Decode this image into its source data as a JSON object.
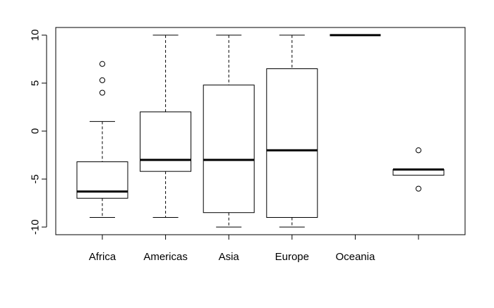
{
  "chart_data": {
    "type": "boxplot",
    "title": "",
    "xlabel": "",
    "ylabel": "",
    "ylim": [
      -10.8,
      10.8
    ],
    "y_ticks": [
      -10,
      -5,
      0,
      5,
      10
    ],
    "y_tick_labels": [
      "-10",
      "-5",
      "0",
      "5",
      "10"
    ],
    "categories": [
      "Africa",
      "Americas",
      "Asia",
      "Europe",
      "Oceania",
      ""
    ],
    "boxes": [
      {
        "category": "Africa",
        "lower_whisker": -9,
        "q1": -7,
        "median": -6.3,
        "q3": -3.2,
        "upper_whisker": 1,
        "outliers": [
          4,
          5.3,
          7
        ]
      },
      {
        "category": "Americas",
        "lower_whisker": -9,
        "q1": -4.2,
        "median": -3,
        "q3": 2,
        "upper_whisker": 10,
        "outliers": []
      },
      {
        "category": "Asia",
        "lower_whisker": -10,
        "q1": -8.5,
        "median": -3,
        "q3": 4.8,
        "upper_whisker": 10,
        "outliers": []
      },
      {
        "category": "Europe",
        "lower_whisker": -10,
        "q1": -9,
        "median": -2,
        "q3": 6.5,
        "upper_whisker": 10,
        "outliers": []
      },
      {
        "category": "Oceania",
        "lower_whisker": 10,
        "q1": 10,
        "median": 10,
        "q3": 10,
        "upper_whisker": 10,
        "outliers": []
      },
      {
        "category": "",
        "lower_whisker": -4.6,
        "q1": -4.6,
        "median": -4,
        "q3": -4,
        "upper_whisker": -4,
        "outliers": [
          -2,
          -6
        ]
      }
    ],
    "grid": false,
    "legend": "none"
  },
  "colors": {
    "line": "#000000",
    "background": "#ffffff",
    "box_fill": "#ffffff"
  }
}
